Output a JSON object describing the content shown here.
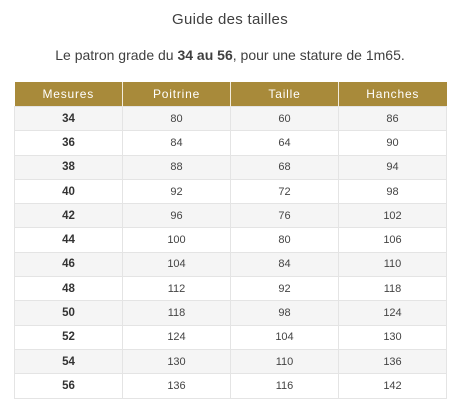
{
  "heading": "Guide des tailles",
  "intro": {
    "prefix": "Le patron grade du ",
    "range_start": "34",
    "range_mid": " au ",
    "range_end": "56",
    "suffix": ", pour une stature de 1m65."
  },
  "table": {
    "columns": [
      "Mesures",
      "Poitrine",
      "Taille",
      "Hanches"
    ],
    "rows": [
      [
        "34",
        "80",
        "60",
        "86"
      ],
      [
        "36",
        "84",
        "64",
        "90"
      ],
      [
        "38",
        "88",
        "68",
        "94"
      ],
      [
        "40",
        "92",
        "72",
        "98"
      ],
      [
        "42",
        "96",
        "76",
        "102"
      ],
      [
        "44",
        "100",
        "80",
        "106"
      ],
      [
        "46",
        "104",
        "84",
        "110"
      ],
      [
        "48",
        "112",
        "92",
        "118"
      ],
      [
        "50",
        "118",
        "98",
        "124"
      ],
      [
        "52",
        "124",
        "104",
        "130"
      ],
      [
        "54",
        "130",
        "110",
        "136"
      ],
      [
        "56",
        "136",
        "116",
        "142"
      ]
    ]
  }
}
